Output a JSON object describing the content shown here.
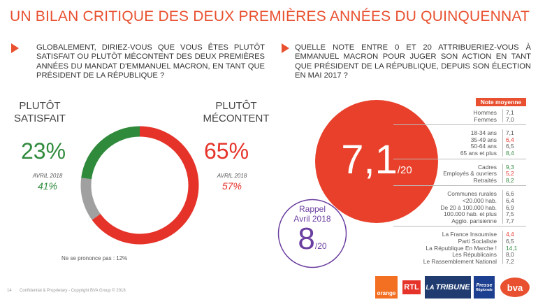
{
  "title": "UN BILAN CRITIQUE DES DEUX PREMIÈRES ANNÉES DU QUINQUENNAT",
  "colors": {
    "accent": "#e8502f",
    "green": "#2f8a3c",
    "red": "#e5332a",
    "gray": "#a0a0a0",
    "purple": "#6b3fa0"
  },
  "left_question": "GLOBALEMENT, DIRIEZ-VOUS QUE VOUS ÊTES PLUTÔT SATISFAIT OU PLUTÔT MÉCONTENT DES DEUX PREMIÈRES ANNÉES DU MANDAT D'EMMANUEL MACRON, EN TANT QUE PRÉSIDENT DE LA RÉPUBLIQUE ?",
  "right_question": "QUELLE NOTE ENTRE 0 ET 20 ATTRIBUERIEZ-VOUS À EMMANUEL MACRON POUR JUGER SON ACTION EN TANT QUE PRÉSIDENT DE LA RÉPUBLIQUE, DEPUIS SON ÉLECTION EN MAI 2017 ?",
  "satisfait": {
    "label_line1": "PLUTÔT",
    "label_line2": "SATISFAIT",
    "pct": "23%",
    "prev_label": "AVRIL 2018",
    "prev_value": "41%"
  },
  "mecontent": {
    "label_line1": "PLUTÔT",
    "label_line2": "MÉCONTENT",
    "pct": "65%",
    "prev_label": "AVRIL 2018",
    "prev_value": "57%"
  },
  "nsp_text": "Ne se prononce pas : 12%",
  "note": {
    "value": "7,1",
    "suffix": "/20"
  },
  "rappel": {
    "line1": "Rappel",
    "line2": "Avril 2018",
    "value": "8",
    "suffix": "/20"
  },
  "table_header": "Note moyenne",
  "table_groups": [
    [
      {
        "label": "Hommes",
        "value": "7,1",
        "color": "#555"
      },
      {
        "label": "Femmes",
        "value": "7,0",
        "color": "#555"
      }
    ],
    [
      {
        "label": "18-34 ans",
        "value": "7,1",
        "color": "#555"
      },
      {
        "label": "35-49 ans",
        "value": "6,4",
        "color": "#e5332a"
      },
      {
        "label": "50-64 ans",
        "value": "6,5",
        "color": "#555"
      },
      {
        "label": "65 ans et plus",
        "value": "8,4",
        "color": "#2f8a3c"
      }
    ],
    [
      {
        "label": "Cadres",
        "value": "9,3",
        "color": "#2f8a3c"
      },
      {
        "label": "Employés & ouvriers",
        "value": "5,2",
        "color": "#e5332a"
      },
      {
        "label": "Retraités",
        "value": "8,2",
        "color": "#2f8a3c"
      }
    ],
    [
      {
        "label": "Communes rurales",
        "value": "6,6",
        "color": "#555"
      },
      {
        "label": "<20.000 hab.",
        "value": "6,4",
        "color": "#555"
      },
      {
        "label": "De 20 à 100.000 hab.",
        "value": "6,9",
        "color": "#555"
      },
      {
        "label": "100.000 hab. et plus",
        "value": "7,5",
        "color": "#555"
      },
      {
        "label": "Agglo. parisienne",
        "value": "7,7",
        "color": "#555"
      }
    ],
    [
      {
        "label": "La France Insoumise",
        "value": "4,4",
        "color": "#e5332a"
      },
      {
        "label": "Parti Socialiste",
        "value": "6,5",
        "color": "#555"
      },
      {
        "label": "La République En Marche !",
        "value": "14,1",
        "color": "#2f8a3c"
      },
      {
        "label": "Les Républicains",
        "value": "8,0",
        "color": "#555"
      },
      {
        "label": "Le Rassemblement National",
        "value": "7,2",
        "color": "#555"
      }
    ]
  ],
  "footer": {
    "page": "14",
    "text": "Confidential & Proprietary - Copyright BVA Group © 2018"
  },
  "logos": {
    "orange": "orange",
    "rtl": "RTL",
    "latribune_1": "LA",
    "latribune_2": "TRIBUNE",
    "presse_1": "Presse",
    "presse_2": "Régionale",
    "bva": "bva"
  },
  "chart_data": {
    "type": "pie",
    "title": "GLOBALEMENT, DIRIEZ-VOUS QUE VOUS ÊTES PLUTÔT SATISFAIT OU PLUTÔT MÉCONTENT DES DEUX PREMIÈRES ANNÉES DU MANDAT D'EMMANUEL MACRON, EN TANT QUE PRÉSIDENT DE LA RÉPUBLIQUE ?",
    "categories": [
      "Plutôt satisfait",
      "Ne se prononce pas",
      "Plutôt mécontent"
    ],
    "values": [
      23,
      12,
      65
    ],
    "colors": [
      "#2f8a3c",
      "#a0a0a0",
      "#e5332a"
    ],
    "previous": {
      "label": "AVRIL 2018",
      "values": [
        41,
        null,
        57
      ]
    }
  }
}
